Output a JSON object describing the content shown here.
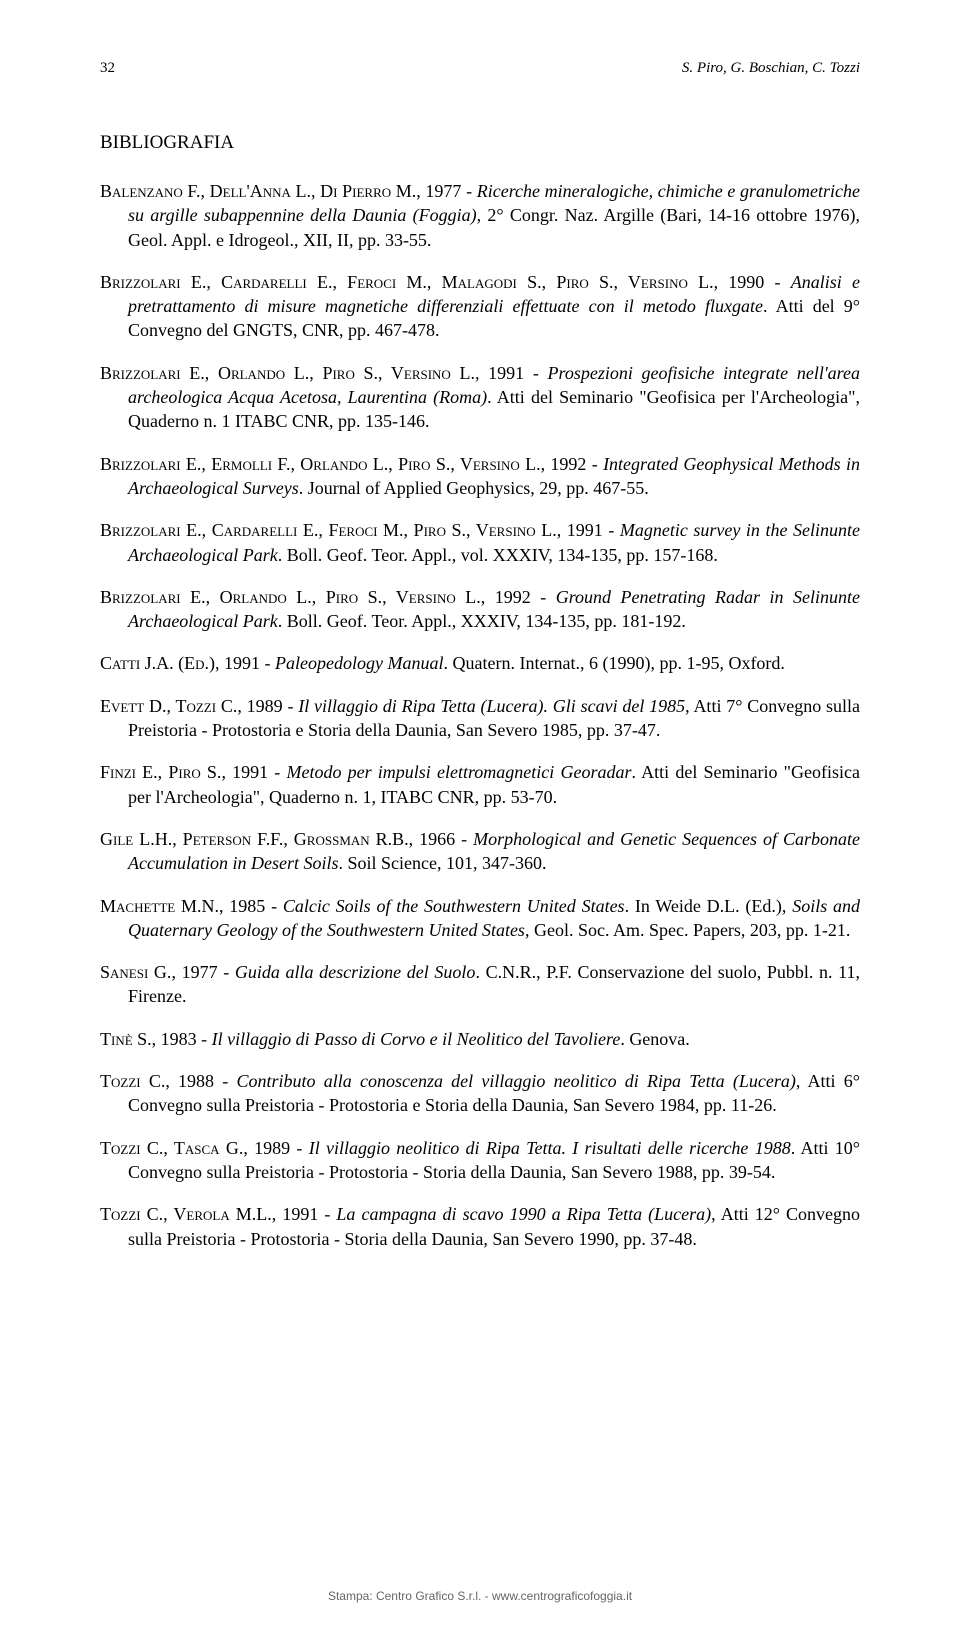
{
  "page_number": "32",
  "running_head": "S. Piro, G. Boschian, C. Tozzi",
  "section_title": "BIBLIOGRAFIA",
  "entries": [
    {
      "authors": "Balenzano F., Dell'Anna L., Di Pierro M.",
      "year": ", 1977 - ",
      "title": "Ricerche mineralogiche, chimiche e granulometriche su argille subappennine della Daunia (Foggia)",
      "rest": ", 2° Congr. Naz. Argille (Bari, 14-16 ottobre 1976), Geol. Appl. e Idrogeol., XII, II, pp. 33-55."
    },
    {
      "authors": "Brizzolari E., Cardarelli E., Feroci M., Malagodi S., Piro S., Versino L.",
      "year": ", 1990 - ",
      "title": "Analisi e pretrattamento di misure magnetiche differenziali effettuate con il metodo fluxgate",
      "rest": ". Atti del 9° Convegno del GNGTS, CNR, pp. 467-478."
    },
    {
      "authors": "Brizzolari E., Orlando L., Piro S., Versino L.",
      "year": ", 1991 - ",
      "title": "Prospezioni geofisiche integrate nell'area archeologica Acqua Acetosa, Laurentina (Roma)",
      "rest": ". Atti del Seminario \"Geofisica per l'Archeologia\", Quaderno n. 1 ITABC CNR, pp. 135-146."
    },
    {
      "authors": "Brizzolari E., Ermolli F., Orlando L., Piro S., Versino L.",
      "year": ", 1992 - ",
      "title": "Integrated Geophysical Methods in Archaeological Surveys",
      "rest": ". Journal of Applied Geophysics, 29, pp. 467-55."
    },
    {
      "authors": "Brizzolari E., Cardarelli E., Feroci M., Piro S., Versino L.",
      "year": ", 1991 - ",
      "title": "Magnetic survey in the Selinunte Archaeological Park",
      "rest": ". Boll. Geof. Teor. Appl., vol. XXXIV, 134-135, pp. 157-168."
    },
    {
      "authors": "Brizzolari E., Orlando L., Piro S., Versino L.",
      "year": ", 1992 - ",
      "title": "Ground Penetrating Radar in Selinunte Archaeological Park",
      "rest": ". Boll. Geof. Teor. Appl., XXXIV, 134-135, pp. 181-192."
    },
    {
      "authors": "Catti J.A. (Ed.)",
      "year": ", 1991 - ",
      "title": "Paleopedology Manual",
      "rest": ". Quatern. Internat., 6 (1990), pp. 1-95, Oxford."
    },
    {
      "authors": "Evett D., Tozzi C.",
      "year": ", 1989 - ",
      "title": "Il villaggio di Ripa Tetta (Lucera). Gli scavi del 1985",
      "rest": ", Atti 7° Convegno sulla Preistoria - Protostoria e Storia della Daunia, San Severo 1985, pp. 37-47."
    },
    {
      "authors": "Finzi E., Piro S.",
      "year": ", 1991 - ",
      "title": "Metodo per impulsi elettromagnetici Georadar",
      "rest": ". Atti del Seminario \"Geofisica per l'Archeologia\", Quaderno n. 1, ITABC CNR, pp. 53-70."
    },
    {
      "authors": "Gile L.H., Peterson F.F., Grossman R.B.",
      "year": ", 1966 - ",
      "title": "Morphological and Genetic Sequences of Carbonate Accumulation in Desert Soils",
      "rest": ". Soil Science, 101, 347-360."
    },
    {
      "authors": "Machette M.N.",
      "year": ", 1985 - ",
      "title": "Calcic Soils of the Southwestern United States",
      "rest_pre": ". In Weide D.L. (Ed.), ",
      "title2": "Soils and Quaternary Geology of the Southwestern United States",
      "rest": ", Geol. Soc. Am. Spec. Papers, 203, pp. 1-21."
    },
    {
      "authors": "Sanesi G.",
      "year": ", 1977 - ",
      "title": "Guida alla descrizione del Suolo",
      "rest": ". C.N.R., P.F. Conservazione del suolo, Pubbl. n. 11, Firenze."
    },
    {
      "authors": "Tinè S.",
      "year": ", 1983 - ",
      "title": "Il villaggio di Passo di Corvo e il Neolitico del Tavoliere",
      "rest": ". Genova."
    },
    {
      "authors": "Tozzi C.",
      "year": ", 1988 - ",
      "title": "Contributo alla conoscenza del villaggio neolitico di Ripa Tetta (Lucera)",
      "rest": ", Atti 6° Convegno sulla Preistoria - Protostoria e Storia della Daunia, San Severo 1984, pp. 11-26."
    },
    {
      "authors": "Tozzi C., Tasca G.",
      "year": ", 1989 - ",
      "title": "Il villaggio neolitico di Ripa Tetta. I risultati delle ricerche 1988",
      "rest": ". Atti 10° Convegno sulla Preistoria - Protostoria - Storia della Daunia, San Severo 1988, pp. 39-54."
    },
    {
      "authors": "Tozzi C., Verola M.L.",
      "year": ", 1991 - ",
      "title": "La campagna di scavo 1990 a Ripa Tetta (Lucera)",
      "rest": ", Atti 12° Convegno sulla Preistoria - Protostoria - Storia della Daunia, San Severo 1990, pp. 37-48."
    }
  ],
  "footer": "Stampa: Centro Grafico S.r.l. - www.centrograficofoggia.it"
}
